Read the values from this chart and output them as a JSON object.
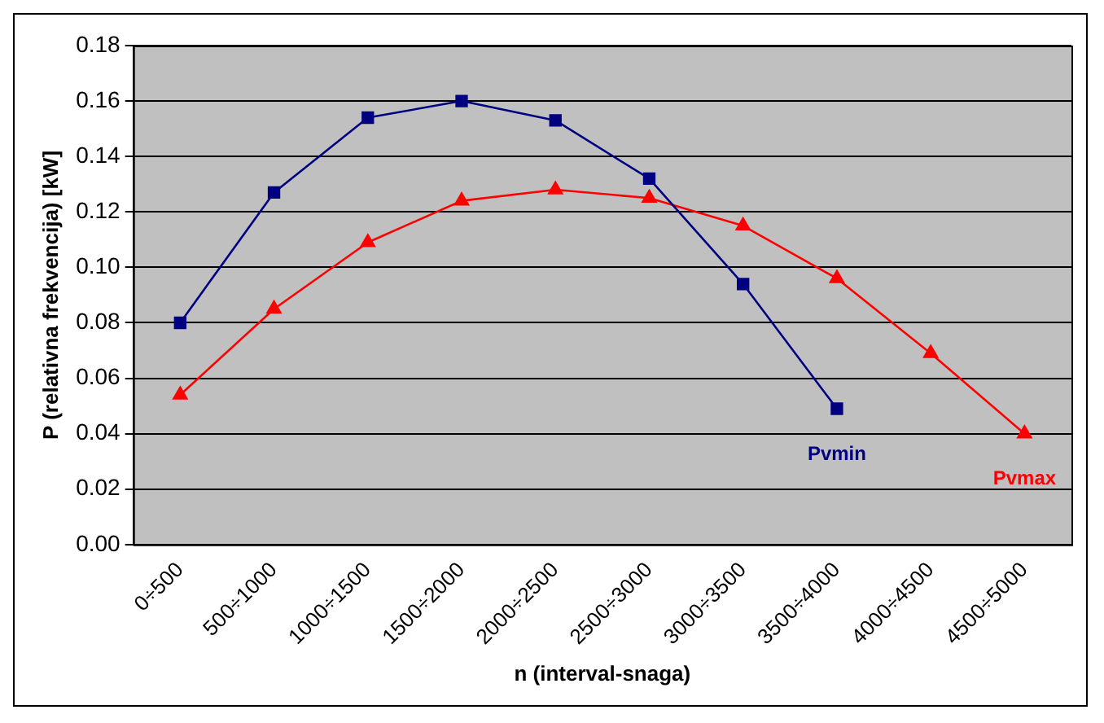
{
  "chart_data": {
    "type": "line",
    "xlabel": "n (interval-snaga)",
    "ylabel": "P (relativna frekvencija) [kW]",
    "categories": [
      "0÷500",
      "500÷1000",
      "1000÷1500",
      "1500÷2000",
      "2000÷2500",
      "2500÷3000",
      "3000÷3500",
      "3500÷4000",
      "4000÷4500",
      "4500÷5000"
    ],
    "series": [
      {
        "name": "Pvmin",
        "color": "#000080",
        "marker": "square",
        "values": [
          0.08,
          0.127,
          0.154,
          0.16,
          0.153,
          0.132,
          0.094,
          0.049,
          null,
          null
        ]
      },
      {
        "name": "Pvmax",
        "color": "#ff0000",
        "marker": "triangle",
        "values": [
          0.054,
          0.085,
          0.109,
          0.124,
          0.128,
          0.125,
          0.115,
          0.096,
          0.069,
          0.04
        ]
      }
    ],
    "ylim": [
      0,
      0.18
    ],
    "yticks": [
      {
        "value": 0,
        "label": "0.00"
      },
      {
        "value": 0.02,
        "label": "0.02"
      },
      {
        "value": 0.04,
        "label": "0.04"
      },
      {
        "value": 0.06,
        "label": "0.06"
      },
      {
        "value": 0.08,
        "label": "0.08"
      },
      {
        "value": 0.1,
        "label": "0.10"
      },
      {
        "value": 0.12,
        "label": "0.12"
      },
      {
        "value": 0.14,
        "label": "0.14"
      },
      {
        "value": 0.16,
        "label": "0.16"
      },
      {
        "value": 0.18,
        "label": "0.18"
      }
    ],
    "grid": "y",
    "legend": false
  }
}
